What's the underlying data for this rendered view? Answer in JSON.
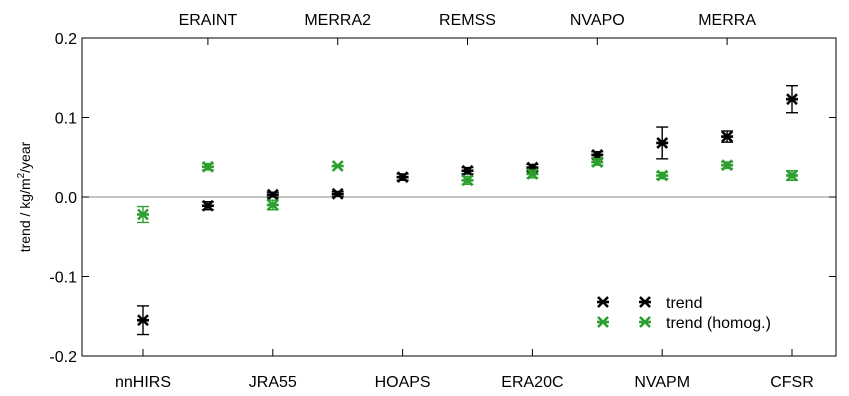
{
  "chart_data": {
    "type": "scatter",
    "title": "",
    "ylabel_parts": [
      "trend / kg/m",
      "2",
      "/year"
    ],
    "xlabel": "",
    "ylim": [
      -0.2,
      0.2
    ],
    "yticks": [
      0.2,
      0.1,
      0.0,
      -0.1,
      -0.2
    ],
    "ytick_labels": [
      "0.2",
      "0.1",
      "0.0",
      "-0.1",
      "-0.2"
    ],
    "bottom_labels": [
      "nnHIRS",
      "JRA55",
      "HOAPS",
      "ERA20C",
      "NVAPM",
      "CFSR"
    ],
    "top_labels": [
      "ERAINT",
      "MERRA2",
      "REMSS",
      "NVAPO",
      "MERRA"
    ],
    "categories": [
      "nnHIRS",
      "ERAINT",
      "JRA55",
      "MERRA2",
      "HOAPS",
      "REMSS",
      "ERA20C",
      "NVAPO",
      "NVAPM",
      "MERRA",
      "CFSR"
    ],
    "zero_line": true,
    "grid": false,
    "legend_position": "bottom-right",
    "series": [
      {
        "name": "trend",
        "color": "#000000",
        "values": [
          -0.155,
          -0.011,
          0.003,
          0.004,
          0.025,
          0.033,
          0.037,
          0.053,
          0.068,
          0.076,
          0.123
        ],
        "errors": [
          0.018,
          0.005,
          0.003,
          0.003,
          0.004,
          0.004,
          0.004,
          0.004,
          0.02,
          0.007,
          0.017
        ]
      },
      {
        "name": "trend (homog.)",
        "color": "#2e9e2e",
        "values": [
          -0.022,
          0.038,
          -0.01,
          0.039,
          null,
          0.021,
          0.029,
          0.044,
          0.027,
          0.04,
          0.027
        ],
        "errors": [
          0.01,
          0.004,
          0.006,
          0.0,
          null,
          0.005,
          0.005,
          0.004,
          0.004,
          0.004,
          0.006
        ]
      }
    ]
  }
}
